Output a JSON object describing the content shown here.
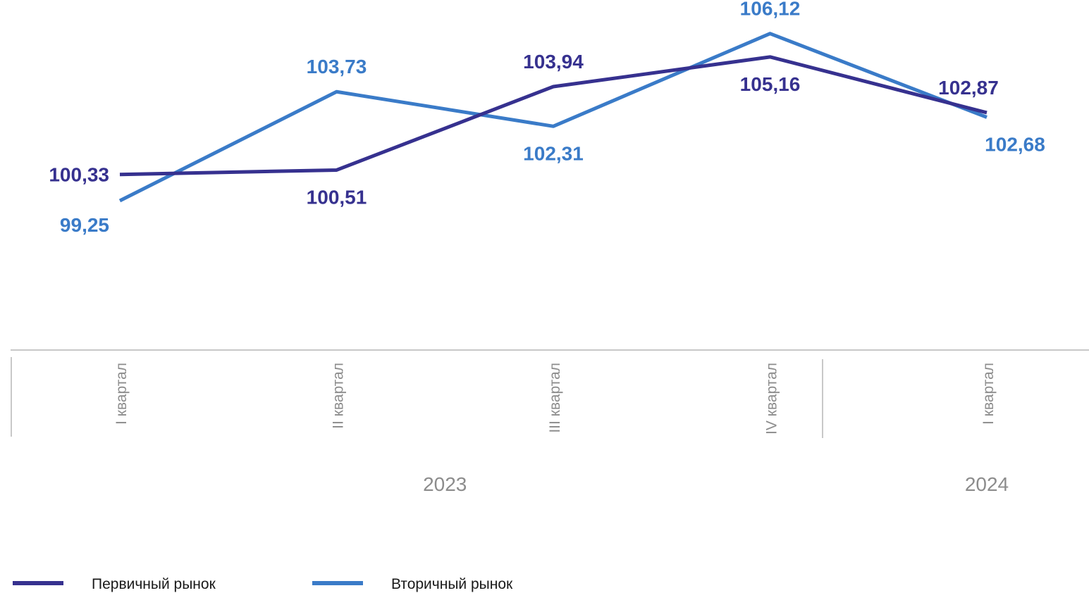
{
  "chart_data": {
    "type": "line",
    "categories": [
      "I квартал",
      "II квартал",
      "III квартал",
      "IV квартал",
      "I квартал"
    ],
    "year_groups": [
      {
        "label": "2023",
        "span": [
          0,
          3
        ]
      },
      {
        "label": "2024",
        "span": [
          4,
          4
        ]
      }
    ],
    "series": [
      {
        "name": "Первичный рынок",
        "color": "#36318f",
        "values": [
          100.33,
          100.51,
          103.94,
          105.16,
          102.87
        ],
        "labels": [
          "100,33",
          "100,51",
          "103,94",
          "105,16",
          "102,87"
        ]
      },
      {
        "name": "Вторичный рынок",
        "color": "#3a7bc8",
        "values": [
          99.25,
          103.73,
          102.31,
          106.12,
          102.68
        ],
        "labels": [
          "99,25",
          "103,73",
          "102,31",
          "106,12",
          "102,68"
        ]
      }
    ],
    "ylim": [
      96.5,
      107.5
    ],
    "grid": false,
    "legend": "bottom-left",
    "axis_color": "#c8c8c8"
  }
}
